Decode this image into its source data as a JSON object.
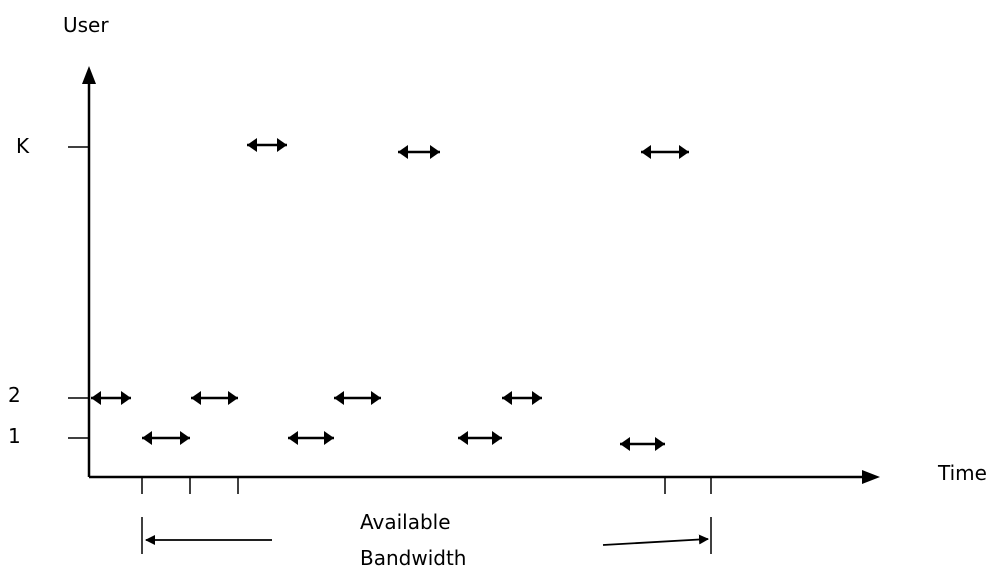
{
  "labels": {
    "y_axis": "User",
    "x_axis": "Time",
    "user_k": "K",
    "user_2": "2",
    "user_1": "1",
    "annotation_line1": "Available",
    "annotation_line2": "Bandwidth"
  },
  "colors": {
    "ink": "#000000",
    "background": "#ffffff"
  }
}
